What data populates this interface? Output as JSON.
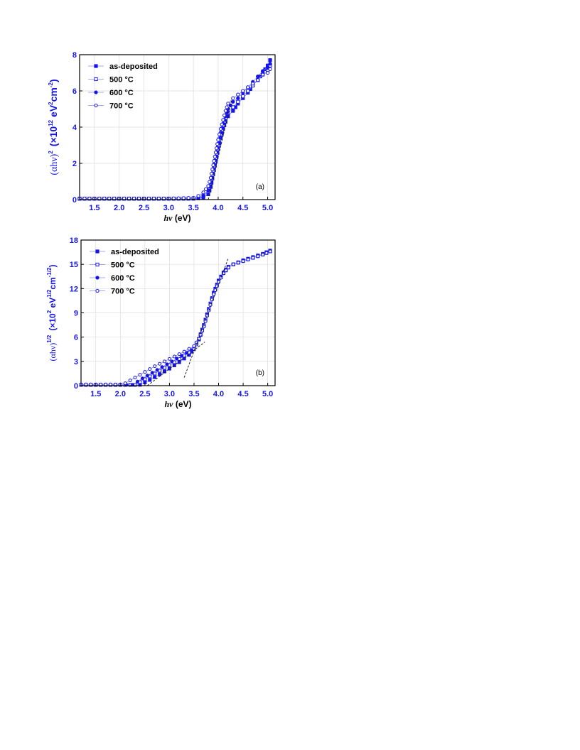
{
  "chart_data": [
    {
      "type": "scatter",
      "panel_label": "(a)",
      "xlabel_italic": "hν",
      "xlabel_unit": " (eV)",
      "ylabel_main": "(αhν)",
      "ylabel_sup": "2",
      "ylabel_unit_prefix": "(×10",
      "ylabel_unit_exp": "12",
      "ylabel_unit_mid": " eV",
      "ylabel_unit_exp2": "2",
      "ylabel_unit_mid2": "cm",
      "ylabel_unit_exp3": "-2",
      "ylabel_unit_close": ")",
      "xlim": [
        1.2,
        5.15
      ],
      "ylim": [
        0,
        8
      ],
      "xticks": [
        1.5,
        2.0,
        2.5,
        3.0,
        3.5,
        4.0,
        4.5,
        5.0
      ],
      "xtick_labels": [
        "1.5",
        "2.0",
        "2.5",
        "3.0",
        "3.5",
        "4.0",
        "4.5",
        "5.0"
      ],
      "yticks": [
        0,
        2,
        4,
        6,
        8
      ],
      "ytick_labels": [
        "0",
        "2",
        "4",
        "6",
        "8"
      ],
      "grid": true,
      "legend_position": "top-left",
      "series": [
        {
          "name": "as-deposited",
          "marker": "square-filled",
          "x": [
            1.2,
            2.0,
            3.0,
            3.5,
            3.6,
            3.7,
            3.8,
            3.85,
            3.9,
            3.95,
            4.0,
            4.05,
            4.1,
            4.15,
            4.2,
            4.3,
            4.4,
            4.5,
            4.6,
            4.7,
            4.8,
            4.9,
            5.0,
            5.05
          ],
          "y": [
            0.05,
            0.05,
            0.05,
            0.05,
            0.07,
            0.12,
            0.3,
            0.7,
            1.4,
            2.1,
            2.8,
            3.4,
            3.9,
            4.3,
            4.6,
            4.9,
            5.3,
            5.6,
            5.9,
            6.3,
            6.6,
            7.0,
            7.4,
            7.7
          ]
        },
        {
          "name": "500 °C",
          "marker": "square-open",
          "x": [
            1.2,
            2.0,
            3.0,
            3.5,
            3.6,
            3.7,
            3.8,
            3.85,
            3.9,
            3.95,
            4.0,
            4.05,
            4.1,
            4.15,
            4.2,
            4.3,
            4.4,
            4.5,
            4.6,
            4.7,
            4.8,
            4.9,
            5.0,
            5.05
          ],
          "y": [
            0.05,
            0.05,
            0.05,
            0.06,
            0.1,
            0.2,
            0.45,
            0.9,
            1.6,
            2.3,
            3.0,
            3.6,
            4.1,
            4.5,
            4.8,
            5.1,
            5.4,
            5.7,
            6.0,
            6.3,
            6.6,
            6.9,
            7.1,
            7.4
          ]
        },
        {
          "name": "600 °C",
          "marker": "circle-filled",
          "x": [
            1.2,
            2.0,
            3.0,
            3.5,
            3.6,
            3.7,
            3.8,
            3.85,
            3.9,
            3.95,
            4.0,
            4.05,
            4.1,
            4.15,
            4.2,
            4.3,
            4.4,
            4.5,
            4.6,
            4.7,
            4.8,
            4.9,
            5.0,
            5.05
          ],
          "y": [
            0.05,
            0.05,
            0.05,
            0.06,
            0.1,
            0.22,
            0.5,
            0.95,
            1.7,
            2.4,
            3.1,
            3.7,
            4.2,
            4.6,
            5.0,
            5.4,
            5.6,
            5.9,
            6.2,
            6.5,
            6.8,
            7.1,
            7.3,
            7.5
          ]
        },
        {
          "name": "700 °C",
          "marker": "circle-open",
          "x": [
            1.2,
            2.0,
            3.0,
            3.5,
            3.6,
            3.7,
            3.8,
            3.85,
            3.9,
            3.95,
            4.0,
            4.05,
            4.1,
            4.15,
            4.2,
            4.3,
            4.4,
            4.5,
            4.6,
            4.7,
            4.8,
            4.9,
            5.0,
            5.05
          ],
          "y": [
            0.06,
            0.06,
            0.06,
            0.1,
            0.2,
            0.4,
            0.75,
            1.2,
            1.9,
            2.6,
            3.3,
            3.9,
            4.4,
            4.9,
            5.3,
            5.6,
            5.8,
            6.0,
            6.2,
            6.4,
            6.6,
            6.9,
            7.0,
            7.2
          ]
        }
      ],
      "fit_lines": [
        {
          "x": [
            3.8,
            4.27
          ],
          "y": [
            0,
            5.5
          ]
        }
      ]
    },
    {
      "type": "scatter",
      "panel_label": "(b)",
      "xlabel_italic": "hν",
      "xlabel_unit": " (eV)",
      "ylabel_main": "(αhν)",
      "ylabel_sup": "1/2",
      "ylabel_unit_prefix": "(×10",
      "ylabel_unit_exp": "2",
      "ylabel_unit_mid": " eV",
      "ylabel_unit_exp2": "1/2",
      "ylabel_unit_mid2": "cm",
      "ylabel_unit_exp3": "-1/2",
      "ylabel_unit_close": ")",
      "xlim": [
        1.2,
        5.15
      ],
      "ylim": [
        0,
        18
      ],
      "xticks": [
        1.5,
        2.0,
        2.5,
        3.0,
        3.5,
        4.0,
        4.5,
        5.0
      ],
      "xtick_labels": [
        "1.5",
        "2.0",
        "2.5",
        "3.0",
        "3.5",
        "4.0",
        "4.5",
        "5.0"
      ],
      "yticks": [
        0,
        3,
        6,
        9,
        12,
        15,
        18
      ],
      "ytick_labels": [
        "0",
        "3",
        "6",
        "9",
        "12",
        "15",
        "18"
      ],
      "grid": true,
      "legend_position": "top-left",
      "series": [
        {
          "name": "as-deposited",
          "marker": "square-filled",
          "x": [
            1.2,
            2.0,
            2.4,
            2.6,
            2.8,
            3.0,
            3.2,
            3.4,
            3.5,
            3.6,
            3.7,
            3.8,
            3.9,
            4.0,
            4.1,
            4.2,
            4.3,
            4.5,
            4.7,
            4.9,
            5.05
          ],
          "y": [
            0.1,
            0.1,
            0.1,
            0.7,
            1.4,
            2.1,
            2.9,
            3.8,
            4.6,
            5.8,
            7.5,
            9.5,
            11.5,
            13.0,
            14.0,
            14.7,
            15.0,
            15.5,
            15.9,
            16.3,
            16.7
          ]
        },
        {
          "name": "500 °C",
          "marker": "square-open",
          "x": [
            1.2,
            2.0,
            2.3,
            2.5,
            2.7,
            2.9,
            3.1,
            3.3,
            3.5,
            3.6,
            3.7,
            3.8,
            3.9,
            4.0,
            4.1,
            4.2,
            4.3,
            4.5,
            4.7,
            4.9,
            5.05
          ],
          "y": [
            0.1,
            0.1,
            0.1,
            0.8,
            1.5,
            2.2,
            2.9,
            3.7,
            4.5,
            5.7,
            7.4,
            9.4,
            11.4,
            12.9,
            13.9,
            14.6,
            15.0,
            15.4,
            15.8,
            16.2,
            16.6
          ]
        },
        {
          "name": "600 °C",
          "marker": "circle-filled",
          "x": [
            1.2,
            2.0,
            2.25,
            2.45,
            2.65,
            2.85,
            3.05,
            3.25,
            3.45,
            3.6,
            3.7,
            3.8,
            3.9,
            4.0,
            4.1,
            4.2,
            4.3,
            4.5,
            4.7,
            4.9,
            5.05
          ],
          "y": [
            0.1,
            0.1,
            0.1,
            0.9,
            1.6,
            2.3,
            3.0,
            3.7,
            4.4,
            5.7,
            7.3,
            9.3,
            11.3,
            12.8,
            13.9,
            14.6,
            15.0,
            15.4,
            15.8,
            16.2,
            16.6
          ]
        },
        {
          "name": "700 °C",
          "marker": "circle-open",
          "x": [
            1.2,
            2.0,
            2.1,
            2.3,
            2.5,
            2.7,
            2.9,
            3.1,
            3.3,
            3.5,
            3.6,
            3.7,
            3.8,
            3.9,
            4.0,
            4.1,
            4.2,
            4.3,
            4.5,
            4.7,
            4.9,
            5.05
          ],
          "y": [
            0.15,
            0.15,
            0.3,
            1.0,
            1.7,
            2.4,
            3.0,
            3.6,
            4.2,
            4.9,
            5.8,
            7.3,
            9.3,
            11.3,
            12.8,
            13.9,
            14.6,
            15.0,
            15.4,
            15.8,
            16.2,
            16.6
          ]
        }
      ],
      "fit_lines": [
        {
          "x": [
            3.3,
            4.2
          ],
          "y": [
            1.0,
            15.8
          ]
        },
        {
          "x": [
            2.55,
            3.72
          ],
          "y": [
            0,
            5.4
          ]
        }
      ]
    }
  ]
}
